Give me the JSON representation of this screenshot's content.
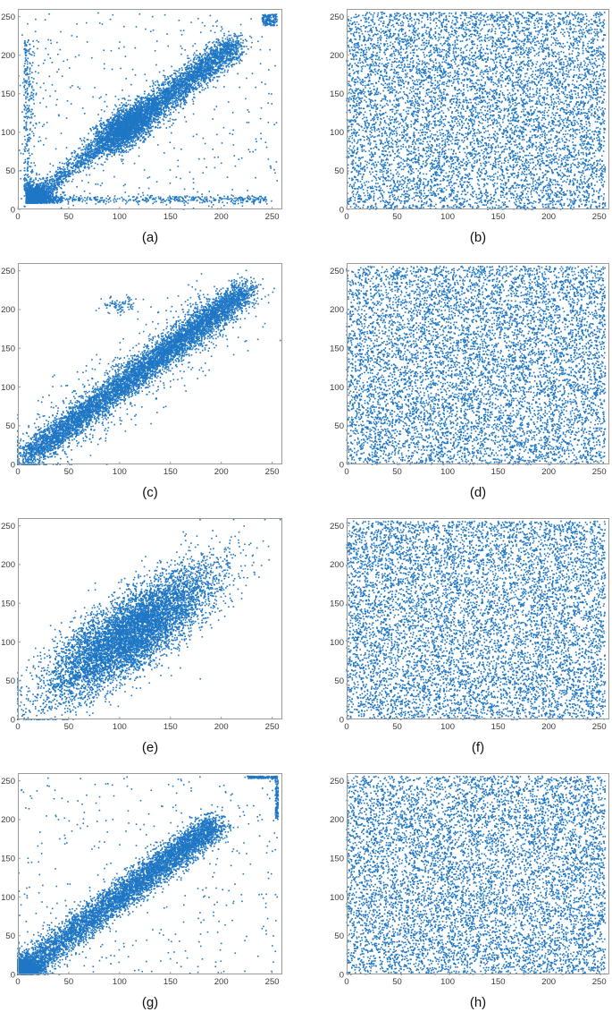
{
  "figure": {
    "marker_color": "#1f77c4",
    "axis_color": "#9a9a9a"
  },
  "chart_data": [
    {
      "type": "scatter",
      "caption": "(a)",
      "xlim": [
        0,
        260
      ],
      "ylim": [
        0,
        260
      ],
      "xticks": [
        0,
        50,
        100,
        150,
        200,
        250
      ],
      "yticks": [
        0,
        50,
        100,
        150,
        200,
        250
      ],
      "grid": false,
      "pattern": "strong positive correlation; dense cluster near (125,125) along y=x to ~(215,215); dense low-value cluster near (10-40, 10-30); horizontal band at y≈15; scattered outliers; saturated points near (250,250)",
      "points": [
        [
          10,
          10
        ],
        [
          15,
          12
        ],
        [
          20,
          18
        ],
        [
          28,
          22
        ],
        [
          35,
          30
        ],
        [
          45,
          40
        ],
        [
          55,
          50
        ],
        [
          65,
          60
        ],
        [
          75,
          72
        ],
        [
          85,
          80
        ],
        [
          100,
          105
        ],
        [
          110,
          115
        ],
        [
          118,
          120
        ],
        [
          122,
          128
        ],
        [
          128,
          125
        ],
        [
          132,
          135
        ],
        [
          140,
          138
        ],
        [
          150,
          150
        ],
        [
          160,
          158
        ],
        [
          170,
          170
        ],
        [
          180,
          178
        ],
        [
          190,
          190
        ],
        [
          200,
          198
        ],
        [
          210,
          208
        ],
        [
          215,
          212
        ],
        [
          60,
          15
        ],
        [
          100,
          14
        ],
        [
          150,
          15
        ],
        [
          200,
          14
        ],
        [
          240,
          15
        ],
        [
          8,
          180
        ],
        [
          10,
          150
        ],
        [
          30,
          220
        ],
        [
          60,
          200
        ],
        [
          160,
          40
        ],
        [
          200,
          60
        ],
        [
          245,
          245
        ],
        [
          248,
          250
        ],
        [
          252,
          240
        ]
      ]
    },
    {
      "type": "scatter",
      "caption": "(b)",
      "xlim": [
        0,
        260
      ],
      "ylim": [
        0,
        260
      ],
      "xticks": [
        0,
        50,
        100,
        150,
        200,
        250
      ],
      "yticks": [
        0,
        50,
        100,
        150,
        200,
        250
      ],
      "grid": false,
      "pattern": "uniform random distribution over [0,255] x [0,255]",
      "points": [
        [
          12,
          240
        ],
        [
          40,
          30
        ],
        [
          80,
          190
        ],
        [
          120,
          60
        ],
        [
          160,
          220
        ],
        [
          200,
          110
        ],
        [
          240,
          20
        ],
        [
          30,
          130
        ],
        [
          90,
          90
        ],
        [
          150,
          160
        ],
        [
          210,
          240
        ],
        [
          250,
          170
        ],
        [
          60,
          10
        ],
        [
          180,
          70
        ],
        [
          230,
          135
        ]
      ]
    },
    {
      "type": "scatter",
      "caption": "(c)",
      "xlim": [
        0,
        260
      ],
      "ylim": [
        0,
        260
      ],
      "xticks": [
        0,
        50,
        100,
        150,
        200,
        250
      ],
      "yticks": [
        0,
        50,
        100,
        150,
        200,
        250
      ],
      "grid": false,
      "pattern": "strong linear correlation along y=x from (5,5) to ~(225,225); small cluster near (100,210)",
      "points": [
        [
          5,
          5
        ],
        [
          20,
          22
        ],
        [
          40,
          38
        ],
        [
          60,
          62
        ],
        [
          80,
          78
        ],
        [
          100,
          102
        ],
        [
          120,
          118
        ],
        [
          140,
          142
        ],
        [
          160,
          158
        ],
        [
          180,
          182
        ],
        [
          200,
          198
        ],
        [
          220,
          222
        ],
        [
          100,
          205
        ],
        [
          110,
          215
        ],
        [
          90,
          195
        ],
        [
          60,
          110
        ],
        [
          150,
          100
        ]
      ]
    },
    {
      "type": "scatter",
      "caption": "(d)",
      "xlim": [
        0,
        260
      ],
      "ylim": [
        0,
        260
      ],
      "xticks": [
        0,
        50,
        100,
        150,
        200,
        250
      ],
      "yticks": [
        0,
        50,
        100,
        150,
        200,
        250
      ],
      "grid": false,
      "pattern": "uniform random distribution over [0,255] x [0,255]",
      "points": [
        [
          15,
          200
        ],
        [
          45,
          50
        ],
        [
          85,
          160
        ],
        [
          125,
          20
        ],
        [
          165,
          240
        ],
        [
          205,
          90
        ],
        [
          245,
          150
        ],
        [
          25,
          100
        ],
        [
          95,
          230
        ],
        [
          145,
          130
        ],
        [
          215,
          30
        ],
        [
          250,
          250
        ]
      ]
    },
    {
      "type": "scatter",
      "caption": "(e)",
      "xlim": [
        0,
        260
      ],
      "ylim": [
        0,
        260
      ],
      "xticks": [
        0,
        50,
        100,
        150,
        200,
        250
      ],
      "yticks": [
        0,
        50,
        100,
        150,
        200,
        250
      ],
      "grid": false,
      "pattern": "broad elliptical positive correlation from (15,20) to (205,205), centered near (115,115)",
      "points": [
        [
          15,
          20
        ],
        [
          40,
          45
        ],
        [
          60,
          70
        ],
        [
          80,
          85
        ],
        [
          100,
          110
        ],
        [
          115,
          115
        ],
        [
          130,
          125
        ],
        [
          150,
          150
        ],
        [
          170,
          165
        ],
        [
          190,
          190
        ],
        [
          205,
          205
        ],
        [
          70,
          120
        ],
        [
          160,
          110
        ],
        [
          50,
          90
        ],
        [
          180,
          140
        ]
      ]
    },
    {
      "type": "scatter",
      "caption": "(f)",
      "xlim": [
        0,
        260
      ],
      "ylim": [
        0,
        260
      ],
      "xticks": [
        0,
        50,
        100,
        150,
        200,
        250
      ],
      "yticks": [
        0,
        50,
        100,
        150,
        200,
        250
      ],
      "grid": false,
      "pattern": "uniform random distribution over [0,255] x [0,255]",
      "points": [
        [
          20,
          220
        ],
        [
          55,
          40
        ],
        [
          95,
          180
        ],
        [
          135,
          70
        ],
        [
          175,
          250
        ],
        [
          215,
          120
        ],
        [
          245,
          10
        ],
        [
          35,
          140
        ],
        [
          105,
          100
        ],
        [
          165,
          200
        ],
        [
          225,
          60
        ],
        [
          255,
          190
        ]
      ]
    },
    {
      "type": "scatter",
      "caption": "(g)",
      "xlim": [
        0,
        260
      ],
      "ylim": [
        0,
        260
      ],
      "xticks": [
        0,
        50,
        100,
        150,
        200,
        250
      ],
      "yticks": [
        0,
        50,
        100,
        150,
        200,
        250
      ],
      "grid": false,
      "pattern": "positive correlation along y=x from (0,0) to ~(195,195); dense cluster near origin; saturated column/row near 255 in top-right; sparse outliers",
      "points": [
        [
          2,
          2
        ],
        [
          10,
          8
        ],
        [
          25,
          22
        ],
        [
          45,
          40
        ],
        [
          65,
          62
        ],
        [
          85,
          80
        ],
        [
          105,
          100
        ],
        [
          125,
          122
        ],
        [
          145,
          140
        ],
        [
          165,
          160
        ],
        [
          185,
          180
        ],
        [
          195,
          190
        ],
        [
          255,
          255
        ],
        [
          250,
          252
        ],
        [
          255,
          230
        ],
        [
          255,
          210
        ],
        [
          230,
          255
        ],
        [
          10,
          150
        ],
        [
          40,
          200
        ],
        [
          200,
          40
        ],
        [
          150,
          20
        ]
      ]
    },
    {
      "type": "scatter",
      "caption": "(h)",
      "xlim": [
        0,
        260
      ],
      "ylim": [
        0,
        260
      ],
      "xticks": [
        0,
        50,
        100,
        150,
        200,
        250
      ],
      "yticks": [
        0,
        50,
        100,
        150,
        200,
        250
      ],
      "grid": false,
      "pattern": "uniform random distribution over [0,255] x [0,255]",
      "points": [
        [
          10,
          250
        ],
        [
          50,
          20
        ],
        [
          90,
          170
        ],
        [
          130,
          50
        ],
        [
          170,
          230
        ],
        [
          210,
          100
        ],
        [
          250,
          140
        ],
        [
          30,
          80
        ],
        [
          110,
          210
        ],
        [
          190,
          10
        ],
        [
          240,
          200
        ],
        [
          70,
          120
        ]
      ]
    }
  ]
}
